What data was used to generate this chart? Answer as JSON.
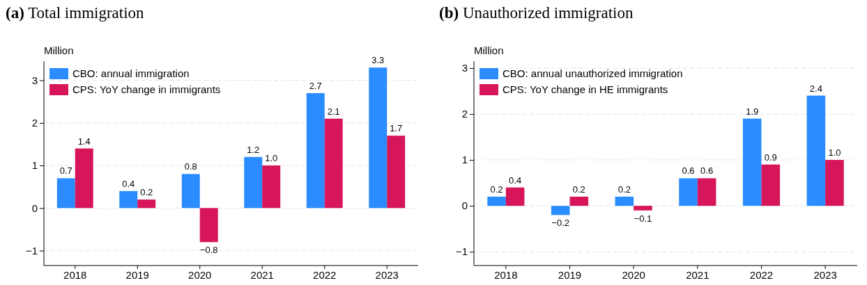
{
  "chart_data": [
    {
      "type": "bar",
      "title": "(a) Total immigration",
      "ylabel": "Million",
      "categories": [
        "2018",
        "2019",
        "2020",
        "2021",
        "2022",
        "2023"
      ],
      "series": [
        {
          "name": "CBO: annual immigration",
          "color": "#2a8cff",
          "values": [
            0.7,
            0.4,
            0.8,
            1.2,
            2.7,
            3.3
          ],
          "value_labels": [
            "0.7",
            "0.4",
            "0.8",
            "1.2",
            "2.7",
            "3.3"
          ]
        },
        {
          "name": "CPS: YoY change in immigrants",
          "color": "#d6155b",
          "values": [
            1.4,
            0.2,
            -0.8,
            1.0,
            2.1,
            1.7
          ],
          "value_labels": [
            "1.4",
            "0.2",
            "−0.8",
            "1.0",
            "2.1",
            "1.7"
          ]
        }
      ],
      "ylim": [
        -1.35,
        3.45
      ],
      "yticks": [
        -1,
        0,
        1,
        2,
        3
      ],
      "grid": "y",
      "legend": "top left"
    },
    {
      "type": "bar",
      "title": "(b) Unauthorized immigration",
      "ylabel": "Million",
      "categories": [
        "2018",
        "2019",
        "2020",
        "2021",
        "2022",
        "2023"
      ],
      "series": [
        {
          "name": "CBO: annual unauthorized immigration",
          "color": "#2a8cff",
          "values": [
            0.2,
            -0.2,
            0.2,
            0.6,
            1.9,
            2.4
          ],
          "value_labels": [
            "0.2",
            "−0.2",
            "0.2",
            "0.6",
            "1.9",
            "2.4"
          ]
        },
        {
          "name": "CPS: YoY change in HE immigrants",
          "color": "#d6155b",
          "values": [
            0.4,
            0.2,
            -0.1,
            0.6,
            0.9,
            1.0
          ],
          "value_labels": [
            "0.4",
            "0.2",
            "−0.1",
            "0.6",
            "0.9",
            "1.0"
          ]
        }
      ],
      "ylim": [
        -1.3,
        3.15
      ],
      "yticks": [
        -1,
        0,
        1,
        2,
        3
      ],
      "grid": "y",
      "legend": "top left"
    }
  ]
}
